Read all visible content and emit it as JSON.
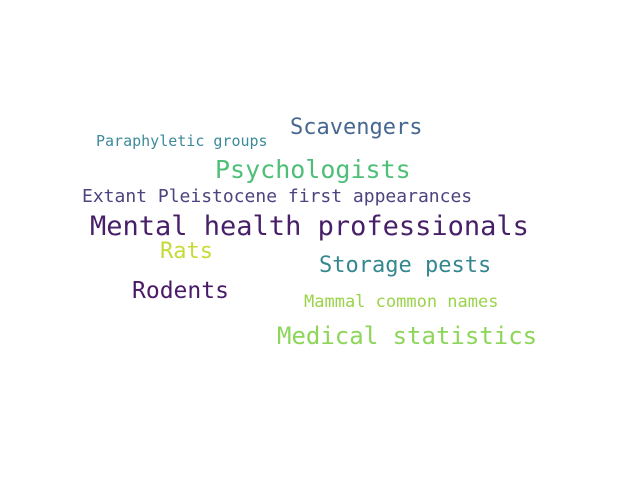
{
  "words": [
    {
      "text": "Paraphyletic groups",
      "color": "#3d8a9a"
    },
    {
      "text": "Scavengers",
      "color": "#46678f"
    },
    {
      "text": "Psychologists",
      "color": "#4fbf78"
    },
    {
      "text": "Extant Pleistocene first appearances",
      "color": "#4e427f"
    },
    {
      "text": "Mental health professionals",
      "color": "#471f68"
    },
    {
      "text": "Rats",
      "color": "#c6da38"
    },
    {
      "text": "Storage pests",
      "color": "#35878f"
    },
    {
      "text": "Rodents",
      "color": "#4a1a68"
    },
    {
      "text": "Mammal common names",
      "color": "#9bd34a"
    },
    {
      "text": "Medical statistics",
      "color": "#8dd65a"
    }
  ]
}
